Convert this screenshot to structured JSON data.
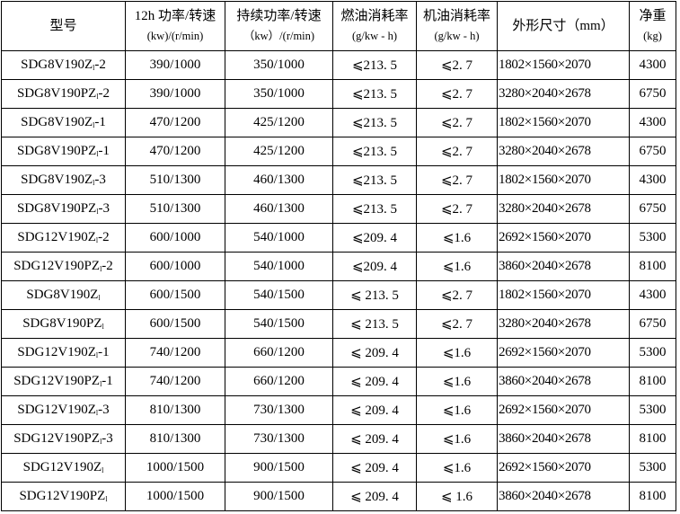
{
  "headers": [
    {
      "line1": "型号",
      "line2": ""
    },
    {
      "line1": "12h 功率/转速",
      "line2": "(kw)/(r/min)"
    },
    {
      "line1": "持续功率/转速",
      "line2": "（kw）/(r/min)"
    },
    {
      "line1": "燃油消耗率",
      "line2": "(g/kw - h)"
    },
    {
      "line1": "机油消耗率",
      "line2": "(g/kw - h)"
    },
    {
      "line1": "外形尺寸（mm）",
      "line2": ""
    },
    {
      "line1": "净重",
      "line2": "(kg)"
    }
  ],
  "rows": [
    {
      "model": "SDG8V190Z",
      "sub": "l",
      "suffix": "-2",
      "power12h": "390/1000",
      "cont": "350/1000",
      "fuel": "⩽213. 5",
      "oil": "⩽2. 7",
      "dims": "1802×1560×2070",
      "weight": "4300"
    },
    {
      "model": "SDG8V190PZ",
      "sub": "l",
      "suffix": "-2",
      "power12h": "390/1000",
      "cont": "350/1000",
      "fuel": "⩽213. 5",
      "oil": "⩽2. 7",
      "dims": "3280×2040×2678",
      "weight": "6750"
    },
    {
      "model": "SDG8V190Z",
      "sub": "l",
      "suffix": "-1",
      "power12h": "470/1200",
      "cont": "425/1200",
      "fuel": "⩽213. 5",
      "oil": "⩽2. 7",
      "dims": "1802×1560×2070",
      "weight": "4300"
    },
    {
      "model": "SDG8V190PZ",
      "sub": "l",
      "suffix": "-1",
      "power12h": "470/1200",
      "cont": "425/1200",
      "fuel": "⩽213. 5",
      "oil": "⩽2. 7",
      "dims": "3280×2040×2678",
      "weight": "6750"
    },
    {
      "model": "SDG8V190Z",
      "sub": "l",
      "suffix": "-3",
      "power12h": "510/1300",
      "cont": "460/1300",
      "fuel": "⩽213. 5",
      "oil": "⩽2. 7",
      "dims": "1802×1560×2070",
      "weight": "4300"
    },
    {
      "model": "SDG8V190PZ",
      "sub": "l",
      "suffix": "-3",
      "power12h": "510/1300",
      "cont": "460/1300",
      "fuel": "⩽213. 5",
      "oil": "⩽2. 7",
      "dims": "3280×2040×2678",
      "weight": "6750"
    },
    {
      "model": "SDG12V190Z",
      "sub": "l",
      "suffix": "-2",
      "power12h": "600/1000",
      "cont": "540/1000",
      "fuel": "⩽209. 4",
      "oil": "⩽1.6",
      "dims": "2692×1560×2070",
      "weight": "5300"
    },
    {
      "model": "SDG12V190PZ",
      "sub": "l",
      "suffix": "-2",
      "power12h": "600/1000",
      "cont": "540/1000",
      "fuel": "⩽209. 4",
      "oil": "⩽1.6",
      "dims": "3860×2040×2678",
      "weight": "8100"
    },
    {
      "model": "SDG8V190Z",
      "sub": "l",
      "suffix": "",
      "power12h": "600/1500",
      "cont": "540/1500",
      "fuel": "⩽ 213. 5",
      "oil": "⩽2. 7",
      "dims": "1802×1560×2070",
      "weight": "4300"
    },
    {
      "model": "SDG8V190PZ",
      "sub": "l",
      "suffix": "",
      "power12h": "600/1500",
      "cont": "540/1500",
      "fuel": "⩽ 213. 5",
      "oil": "⩽2. 7",
      "dims": "3280×2040×2678",
      "weight": "6750"
    },
    {
      "model": "SDG12V190Z",
      "sub": "l",
      "suffix": "-1",
      "power12h": "740/1200",
      "cont": "660/1200",
      "fuel": "⩽ 209. 4",
      "oil": "⩽1.6",
      "dims": "2692×1560×2070",
      "weight": "5300"
    },
    {
      "model": "SDG12V190PZ",
      "sub": "l",
      "suffix": "-1",
      "power12h": "740/1200",
      "cont": "660/1200",
      "fuel": "⩽ 209. 4",
      "oil": "⩽1.6",
      "dims": "3860×2040×2678",
      "weight": "8100"
    },
    {
      "model": "SDG12V190Z",
      "sub": "l",
      "suffix": "-3",
      "power12h": "810/1300",
      "cont": "730/1300",
      "fuel": "⩽ 209. 4",
      "oil": "⩽1.6",
      "dims": "2692×1560×2070",
      "weight": "5300"
    },
    {
      "model": "SDG12V190PZ",
      "sub": "l",
      "suffix": "-3",
      "power12h": "810/1300",
      "cont": "730/1300",
      "fuel": "⩽ 209. 4",
      "oil": "⩽1.6",
      "dims": "3860×2040×2678",
      "weight": "8100"
    },
    {
      "model": "SDG12V190Z",
      "sub": "l",
      "suffix": "",
      "power12h": "1000/1500",
      "cont": "900/1500",
      "fuel": "⩽ 209. 4",
      "oil": "⩽1.6",
      "dims": "2692×1560×2070",
      "weight": "5300"
    },
    {
      "model": "SDG12V190PZ",
      "sub": "l",
      "suffix": "",
      "power12h": "1000/1500",
      "cont": "900/1500",
      "fuel": "⩽ 209. 4",
      "oil": "⩽ 1.6",
      "dims": "3860×2040×2678",
      "weight": "8100"
    }
  ]
}
